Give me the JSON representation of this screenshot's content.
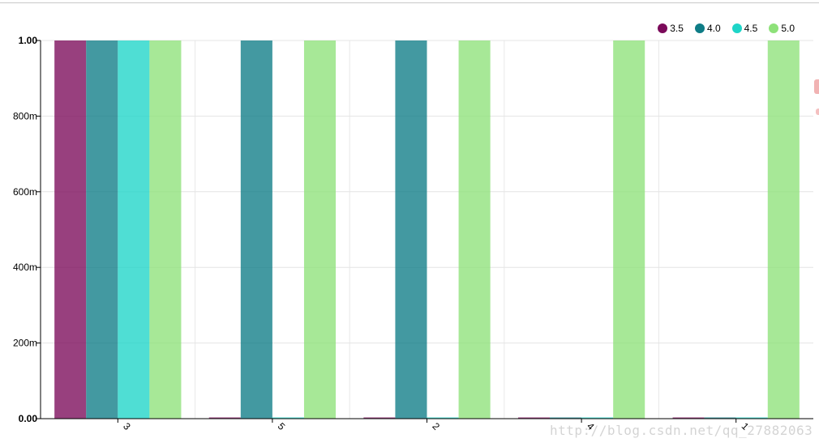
{
  "chart_data": {
    "type": "bar",
    "categories": [
      "3",
      "5",
      "2",
      "4",
      "1"
    ],
    "series": [
      {
        "name": "3.5",
        "color": "#7b0a5a",
        "values": [
          1.0,
          0.0,
          0.0,
          0.0,
          0.0
        ]
      },
      {
        "name": "4.0",
        "color": "#0e7c86",
        "values": [
          1.0,
          1.0,
          1.0,
          0.0,
          0.0
        ]
      },
      {
        "name": "4.5",
        "color": "#1ed5c8",
        "values": [
          1.0,
          0.0,
          0.0,
          0.0,
          0.0
        ]
      },
      {
        "name": "5.0",
        "color": "#8ee17a",
        "values": [
          1.0,
          1.0,
          1.0,
          1.0,
          1.0
        ]
      }
    ],
    "yticks": [
      {
        "value": 0,
        "label": "0.00"
      },
      {
        "value": 0.2,
        "label": "200m"
      },
      {
        "value": 0.4,
        "label": "400m"
      },
      {
        "value": 0.6,
        "label": "600m"
      },
      {
        "value": 0.8,
        "label": "800m"
      },
      {
        "value": 1.0,
        "label": "1.00"
      }
    ],
    "ylim": [
      0,
      1
    ],
    "grid": true,
    "legend_position": "top-right"
  },
  "watermark": "http://blog.csdn.net/qq_27882063"
}
